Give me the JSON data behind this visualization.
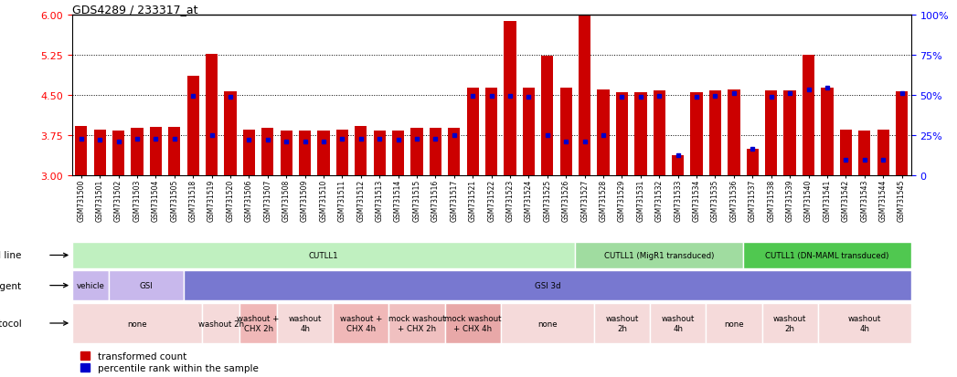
{
  "title": "GDS4289 / 233317_at",
  "bar_color": "#CC0000",
  "dot_color": "#0000CC",
  "ymin": 3,
  "ymax": 6,
  "yticks_left": [
    3,
    3.75,
    4.5,
    5.25,
    6
  ],
  "yticks_right_pct": [
    0,
    25,
    50,
    75,
    100
  ],
  "dotted_lines": [
    3.75,
    4.5,
    5.25
  ],
  "samples": [
    "GSM731500",
    "GSM731501",
    "GSM731502",
    "GSM731503",
    "GSM731504",
    "GSM731505",
    "GSM731518",
    "GSM731519",
    "GSM731520",
    "GSM731506",
    "GSM731507",
    "GSM731508",
    "GSM731509",
    "GSM731510",
    "GSM731511",
    "GSM731512",
    "GSM731513",
    "GSM731514",
    "GSM731515",
    "GSM731516",
    "GSM731517",
    "GSM731521",
    "GSM731522",
    "GSM731523",
    "GSM731524",
    "GSM731525",
    "GSM731526",
    "GSM731527",
    "GSM731528",
    "GSM731529",
    "GSM731531",
    "GSM731532",
    "GSM731533",
    "GSM731534",
    "GSM731535",
    "GSM731536",
    "GSM731537",
    "GSM731538",
    "GSM731539",
    "GSM731540",
    "GSM731541",
    "GSM731542",
    "GSM731543",
    "GSM731544",
    "GSM731545"
  ],
  "bar_heights": [
    3.92,
    3.85,
    3.83,
    3.88,
    3.9,
    3.9,
    4.85,
    5.26,
    4.56,
    3.85,
    3.87,
    3.83,
    3.82,
    3.83,
    3.85,
    3.92,
    3.83,
    3.83,
    3.87,
    3.88,
    3.87,
    4.62,
    4.62,
    5.87,
    4.62,
    5.22,
    4.62,
    5.97,
    4.6,
    4.55,
    4.55,
    4.58,
    3.37,
    4.55,
    4.57,
    4.6,
    3.48,
    4.57,
    4.57,
    5.25,
    4.62,
    3.84,
    3.83,
    3.84,
    4.56
  ],
  "dot_positions": [
    3.68,
    3.65,
    3.62,
    3.68,
    3.68,
    3.68,
    4.48,
    3.75,
    4.45,
    3.65,
    3.65,
    3.62,
    3.62,
    3.62,
    3.68,
    3.68,
    3.68,
    3.65,
    3.68,
    3.68,
    3.75,
    4.48,
    4.48,
    4.48,
    4.45,
    3.75,
    3.62,
    3.62,
    3.75,
    4.45,
    4.45,
    4.48,
    3.37,
    4.45,
    4.48,
    4.52,
    3.48,
    4.45,
    4.52,
    4.6,
    4.62,
    3.28,
    3.28,
    3.28,
    4.52
  ],
  "cell_line_groups": [
    {
      "label": "CUTLL1",
      "start": 0,
      "end": 27,
      "color": "#C0F0C0"
    },
    {
      "label": "CUTLL1 (MigR1 transduced)",
      "start": 27,
      "end": 36,
      "color": "#A0DCA0"
    },
    {
      "label": "CUTLL1 (DN-MAML transduced)",
      "start": 36,
      "end": 45,
      "color": "#50C850"
    }
  ],
  "agent_groups": [
    {
      "label": "vehicle",
      "start": 0,
      "end": 2,
      "color": "#C8B8EC"
    },
    {
      "label": "GSI",
      "start": 2,
      "end": 6,
      "color": "#C8B8EC"
    },
    {
      "label": "GSI 3d",
      "start": 6,
      "end": 45,
      "color": "#7878D0"
    }
  ],
  "protocol_groups": [
    {
      "label": "none",
      "start": 0,
      "end": 7,
      "color": "#F5DADA"
    },
    {
      "label": "washout 2h",
      "start": 7,
      "end": 9,
      "color": "#F5DADA"
    },
    {
      "label": "washout +\nCHX 2h",
      "start": 9,
      "end": 11,
      "color": "#F0B8B8"
    },
    {
      "label": "washout\n4h",
      "start": 11,
      "end": 14,
      "color": "#F5DADA"
    },
    {
      "label": "washout +\nCHX 4h",
      "start": 14,
      "end": 17,
      "color": "#F0B8B8"
    },
    {
      "label": "mock washout\n+ CHX 2h",
      "start": 17,
      "end": 20,
      "color": "#F0C0C0"
    },
    {
      "label": "mock washout\n+ CHX 4h",
      "start": 20,
      "end": 23,
      "color": "#E8A8A8"
    },
    {
      "label": "none",
      "start": 23,
      "end": 28,
      "color": "#F5DADA"
    },
    {
      "label": "washout\n2h",
      "start": 28,
      "end": 31,
      "color": "#F5DADA"
    },
    {
      "label": "washout\n4h",
      "start": 31,
      "end": 34,
      "color": "#F5DADA"
    },
    {
      "label": "none",
      "start": 34,
      "end": 37,
      "color": "#F5DADA"
    },
    {
      "label": "washout\n2h",
      "start": 37,
      "end": 40,
      "color": "#F5DADA"
    },
    {
      "label": "washout\n4h",
      "start": 40,
      "end": 45,
      "color": "#F5DADA"
    }
  ],
  "legend_red": "transformed count",
  "legend_blue": "percentile rank within the sample",
  "bg_color": "#FFFFFF"
}
